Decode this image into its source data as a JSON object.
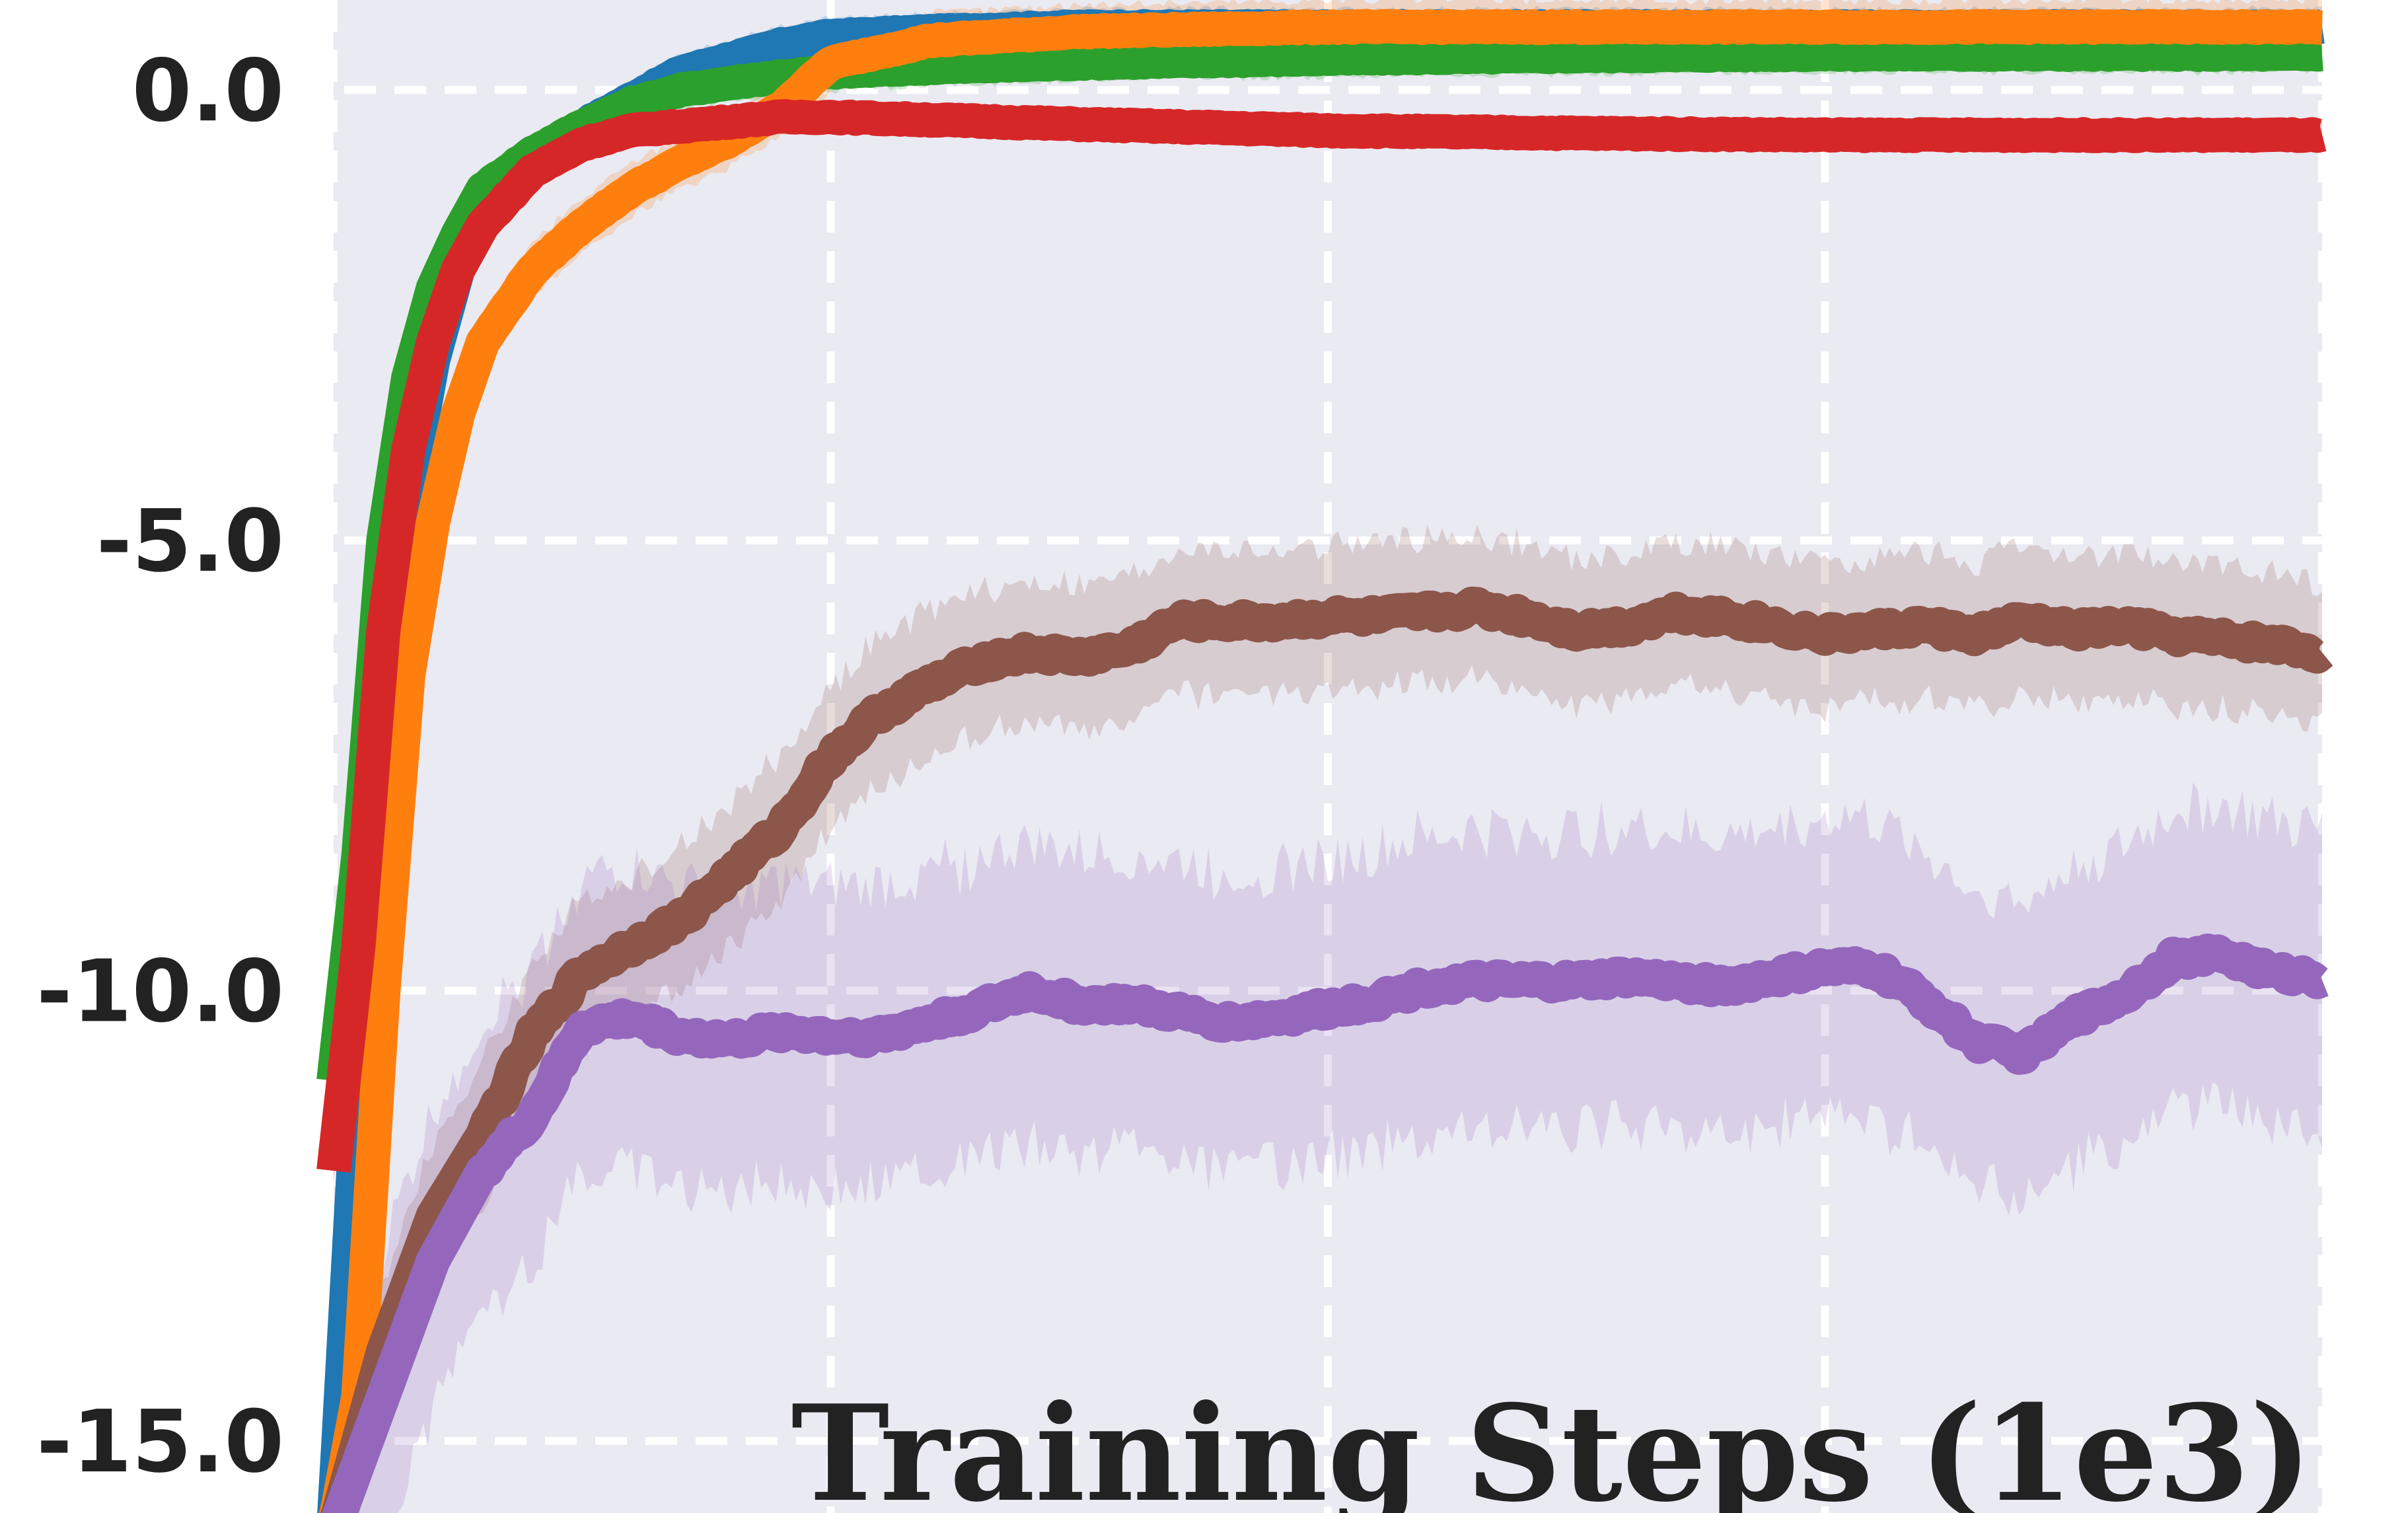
{
  "chart_data": {
    "type": "line",
    "xlabel": "Training Steps (1e3)",
    "ylabel": "",
    "title": "",
    "xlim": [
      0,
      400
    ],
    "ylim": [
      -15.8,
      1.0
    ],
    "yticks": [
      0.0,
      -5.0,
      -10.0,
      -15.0
    ],
    "ytick_labels": [
      "0.0",
      "-5.0",
      "-10.0",
      "-15.0"
    ],
    "xgrid": [
      0,
      100,
      200,
      300,
      400
    ],
    "grid": true,
    "background": "#eaeaf2",
    "series": [
      {
        "color": "#1f77b4",
        "x": [
          0,
          5,
          10,
          15,
          20,
          25,
          30,
          40,
          50,
          60,
          70,
          80,
          90,
          100,
          120,
          150,
          200,
          250,
          300,
          350,
          400
        ],
        "y": [
          -16.0,
          -11.0,
          -7.0,
          -4.5,
          -3.0,
          -2.0,
          -1.3,
          -0.8,
          -0.4,
          -0.1,
          0.2,
          0.35,
          0.5,
          0.6,
          0.65,
          0.7,
          0.7,
          0.7,
          0.7,
          0.7,
          0.7
        ],
        "band": 0.2
      },
      {
        "color": "#2ca02c",
        "x": [
          0,
          5,
          10,
          15,
          20,
          25,
          30,
          40,
          50,
          60,
          70,
          80,
          90,
          100,
          120,
          150,
          200,
          250,
          300,
          350,
          400
        ],
        "y": [
          -11.0,
          -8.5,
          -5.0,
          -3.2,
          -2.2,
          -1.6,
          -1.1,
          -0.7,
          -0.4,
          -0.15,
          0.0,
          0.08,
          0.15,
          0.2,
          0.25,
          0.3,
          0.35,
          0.38,
          0.4,
          0.4,
          0.4
        ],
        "band": 0.2
      },
      {
        "color": "#ff7f0e",
        "x": [
          0,
          5,
          10,
          15,
          20,
          25,
          30,
          40,
          50,
          60,
          70,
          80,
          90,
          100,
          120,
          150,
          200,
          250,
          300,
          350,
          400
        ],
        "y": [
          -16.0,
          -14.5,
          -10.0,
          -6.5,
          -4.8,
          -3.6,
          -2.8,
          -2.0,
          -1.5,
          -1.1,
          -0.8,
          -0.55,
          -0.2,
          0.3,
          0.55,
          0.65,
          0.7,
          0.7,
          0.7,
          0.7,
          0.7
        ],
        "band": 0.3
      },
      {
        "color": "#d62728",
        "x": [
          0,
          5,
          10,
          15,
          20,
          25,
          30,
          40,
          50,
          60,
          70,
          80,
          90,
          100,
          120,
          150,
          200,
          250,
          300,
          350,
          400
        ],
        "y": [
          -12.0,
          -9.5,
          -6.0,
          -4.0,
          -2.8,
          -2.0,
          -1.5,
          -0.9,
          -0.6,
          -0.45,
          -0.4,
          -0.35,
          -0.3,
          -0.3,
          -0.33,
          -0.38,
          -0.45,
          -0.48,
          -0.5,
          -0.5,
          -0.5
        ],
        "band": 0.15
      },
      {
        "color": "#8c564b",
        "x": [
          0,
          10,
          20,
          30,
          40,
          50,
          60,
          70,
          80,
          90,
          100,
          110,
          120,
          130,
          140,
          150,
          160,
          170,
          180,
          190,
          200,
          210,
          220,
          230,
          240,
          250,
          260,
          270,
          280,
          290,
          300,
          310,
          320,
          330,
          340,
          350,
          360,
          370,
          380,
          390,
          400
        ],
        "y": [
          -16.0,
          -14.0,
          -12.5,
          -11.6,
          -10.5,
          -9.8,
          -9.5,
          -9.2,
          -8.7,
          -8.2,
          -7.4,
          -6.9,
          -6.6,
          -6.35,
          -6.25,
          -6.3,
          -6.2,
          -5.9,
          -5.9,
          -5.9,
          -5.85,
          -5.85,
          -5.8,
          -5.75,
          -5.85,
          -6.0,
          -5.95,
          -5.8,
          -5.85,
          -5.95,
          -6.05,
          -6.0,
          -5.95,
          -6.05,
          -5.9,
          -6.0,
          -5.95,
          -6.05,
          -6.1,
          -6.15,
          -6.25
        ],
        "band": 0.8
      },
      {
        "color": "#9467bd",
        "x": [
          0,
          10,
          20,
          30,
          40,
          50,
          60,
          70,
          80,
          90,
          100,
          110,
          120,
          130,
          140,
          150,
          160,
          170,
          180,
          190,
          200,
          210,
          220,
          230,
          240,
          250,
          260,
          270,
          280,
          290,
          300,
          310,
          320,
          330,
          340,
          350,
          360,
          370,
          380,
          390,
          400
        ],
        "y": [
          -16.0,
          -14.5,
          -13.0,
          -12.0,
          -11.4,
          -10.4,
          -10.3,
          -10.5,
          -10.55,
          -10.45,
          -10.5,
          -10.5,
          -10.35,
          -10.2,
          -10.0,
          -10.15,
          -10.15,
          -10.25,
          -10.35,
          -10.3,
          -10.2,
          -10.1,
          -9.95,
          -9.9,
          -9.9,
          -9.9,
          -9.85,
          -9.9,
          -9.95,
          -9.85,
          -9.75,
          -9.75,
          -10.1,
          -10.55,
          -10.7,
          -10.3,
          -10.05,
          -9.65,
          -9.6,
          -9.8,
          -9.85
        ],
        "band": 1.65
      }
    ]
  }
}
